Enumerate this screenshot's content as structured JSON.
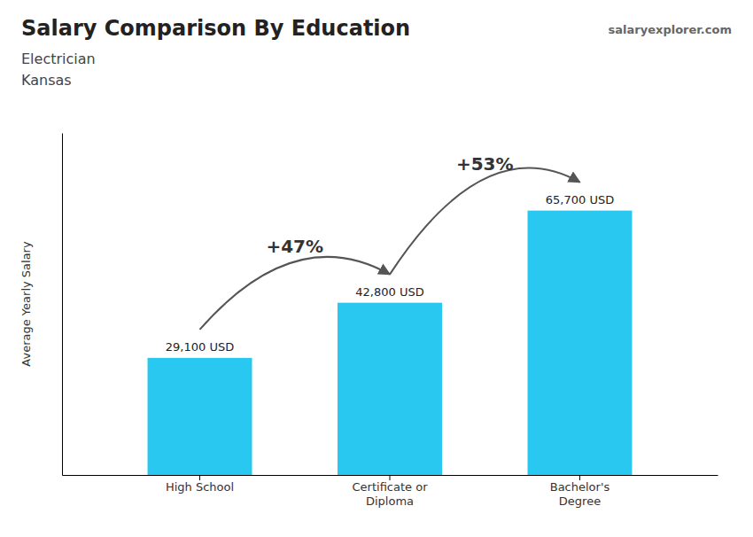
{
  "chart_data": {
    "type": "bar",
    "title": "Salary Comparison By Education",
    "subtitle": [
      "Electrician",
      "Kansas"
    ],
    "watermark": "salaryexplorer.com",
    "y_label": "Average Yearly Salary",
    "categories": [
      "High School",
      "Certificate or\nDiploma",
      "Bachelor's\nDegree"
    ],
    "values": [
      29100,
      42800,
      65700
    ],
    "value_labels": [
      "29,100 USD",
      "42,800 USD",
      "65,700 USD"
    ],
    "color": "#29c8f0",
    "annotations": [
      "+47%",
      "+53%"
    ],
    "ylim": [
      0,
      85000
    ],
    "yticks": [],
    "tick_labels": "x",
    "grid": false,
    "data_labels": true
  }
}
